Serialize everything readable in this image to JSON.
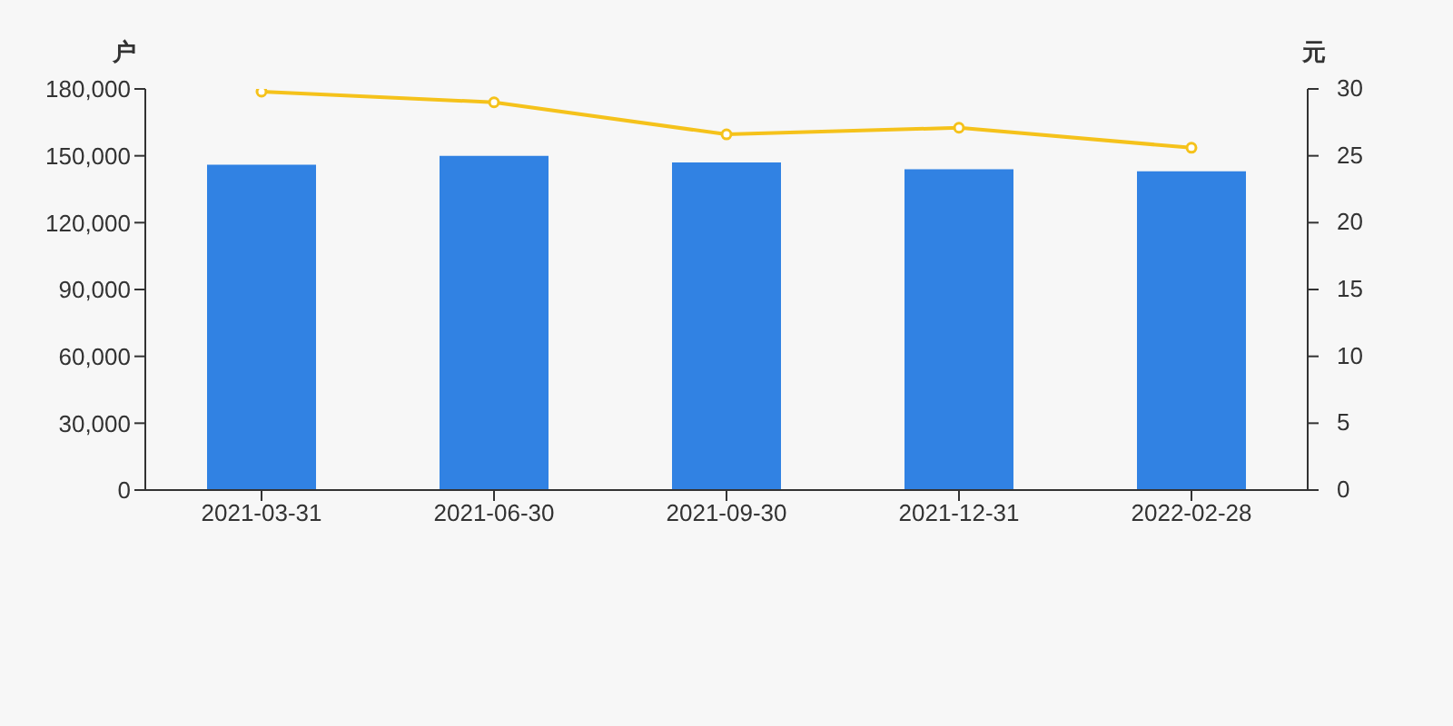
{
  "chart_data": {
    "type": "bar",
    "ylabel": "户",
    "y2label": "元",
    "categories": [
      "2021-03-31",
      "2021-06-30",
      "2021-09-30",
      "2021-12-31",
      "2022-02-28"
    ],
    "series": [
      {
        "color": "#3182e3",
        "values": [
          146000,
          150000,
          147000,
          144000,
          143000
        ]
      },
      {
        "type": "line",
        "axis": "y2",
        "color": "#f5c21b",
        "marker": "circle",
        "values": [
          29.8,
          29.0,
          26.6,
          27.1,
          25.6
        ]
      }
    ],
    "ylim": [
      0,
      180000
    ],
    "yticks": [
      {
        "value": 0,
        "label": "0"
      },
      {
        "value": 30000,
        "label": "30,000"
      },
      {
        "value": 60000,
        "label": "60,000"
      },
      {
        "value": 90000,
        "label": "90,000"
      },
      {
        "value": 120000,
        "label": "120,000"
      },
      {
        "value": 150000,
        "label": "150,000"
      },
      {
        "value": 180000,
        "label": "180,000"
      }
    ],
    "y2lim": [
      0,
      30
    ],
    "y2ticks": [
      0,
      5,
      10,
      15,
      20,
      25,
      30
    ],
    "grid": false,
    "legend": false
  }
}
